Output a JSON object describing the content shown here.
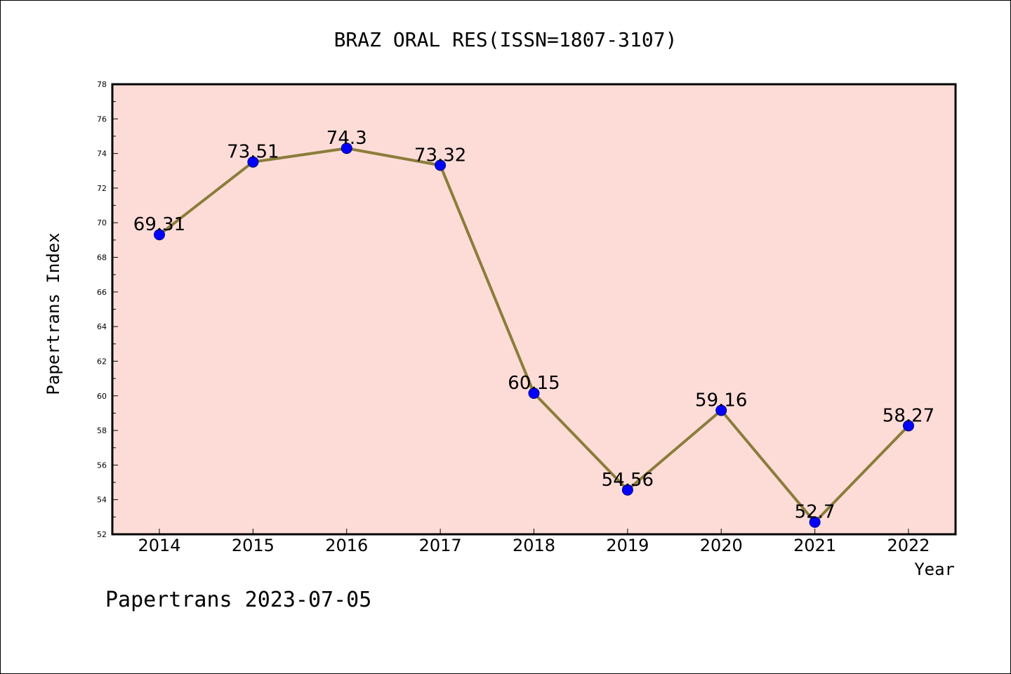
{
  "chart_data": {
    "type": "line",
    "title": "BRAZ ORAL RES(ISSN=1807-3107)",
    "xlabel": "Year",
    "ylabel": "Papertrans Index",
    "x": [
      "2014",
      "2015",
      "2016",
      "2017",
      "2018",
      "2019",
      "2020",
      "2021",
      "2022"
    ],
    "series": [
      {
        "values": [
          69.31,
          73.51,
          74.3,
          73.32,
          60.15,
          54.56,
          59.16,
          52.7,
          58.27
        ],
        "data_labels": [
          "69.31",
          "73.51",
          "74.3",
          "73.32",
          "60.15",
          "54.56",
          "59.16",
          "52.7",
          "58.27"
        ],
        "line_color": "#8b7d3a",
        "marker_color": "#0000ff"
      }
    ],
    "ylim": [
      52,
      78
    ],
    "yticks": [
      "52",
      "54",
      "56",
      "58",
      "60",
      "62",
      "64",
      "66",
      "68",
      "70",
      "72",
      "74",
      "76",
      "78"
    ],
    "plot_background": "#fddcd8",
    "grid": false,
    "legend": "none"
  },
  "footer": {
    "text": "Papertrans 2023-07-05"
  }
}
